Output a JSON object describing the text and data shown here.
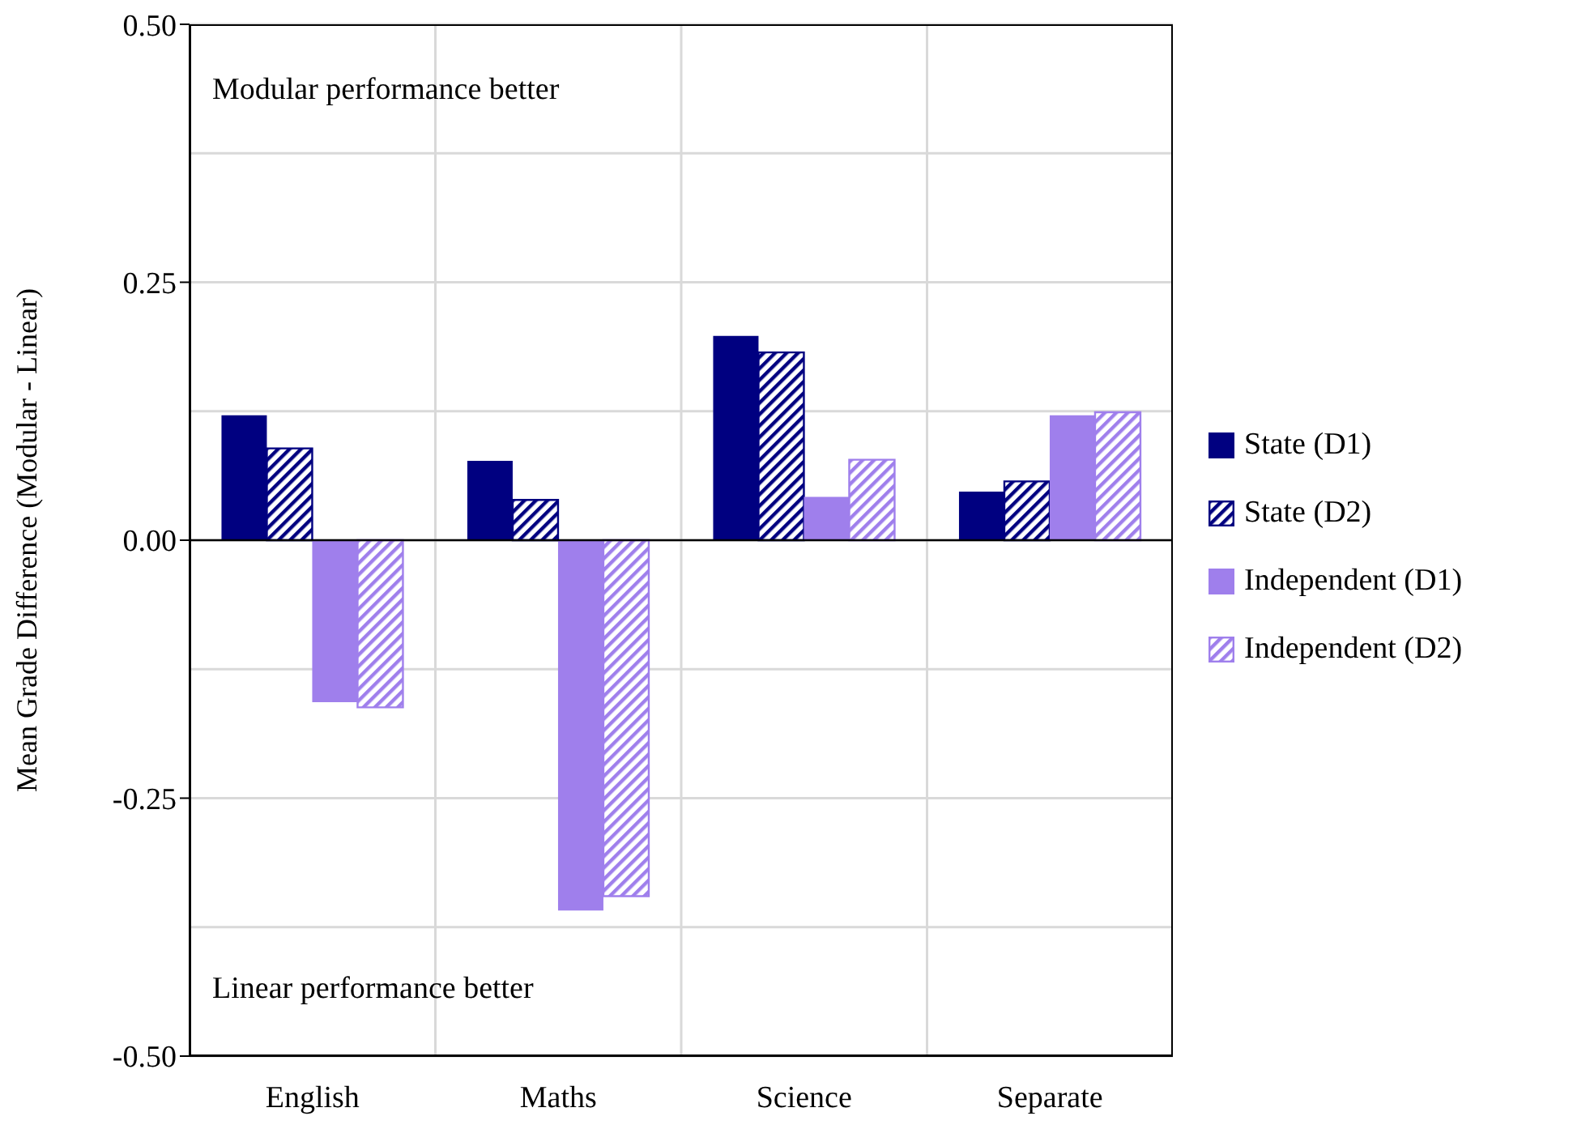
{
  "chart_data": {
    "type": "bar",
    "ylabel": "Mean Grade Difference (Modular - Linear)",
    "categories": [
      "English",
      "Maths",
      "Science",
      "Separate"
    ],
    "series": [
      {
        "name": "State (D1)",
        "color": "#000080",
        "values": [
          0.121,
          0.077,
          0.198,
          0.047
        ]
      },
      {
        "name": "State (D2)",
        "color": "#000080",
        "values": [
          0.089,
          0.039,
          0.182,
          0.057
        ]
      },
      {
        "name": "Independent (D1)",
        "color": "#9f7fec",
        "values": [
          -0.157,
          -0.359,
          0.042,
          0.121
        ]
      },
      {
        "name": "Independent (D2)",
        "color": "#9f7fec",
        "values": [
          -0.162,
          -0.345,
          0.078,
          0.124
        ]
      }
    ],
    "ylim": [
      -0.5,
      0.5
    ],
    "yticks": [
      {
        "value": 0.5,
        "label": "0.50"
      },
      {
        "value": 0.25,
        "label": "0.25"
      },
      {
        "value": 0,
        "label": "0.00"
      },
      {
        "value": -0.25,
        "label": "-0.25"
      },
      {
        "value": -0.5,
        "label": "-0.50"
      }
    ],
    "grid": true,
    "legend": "right",
    "annotations": [
      "Modular performance better",
      "Linear performance better"
    ]
  }
}
